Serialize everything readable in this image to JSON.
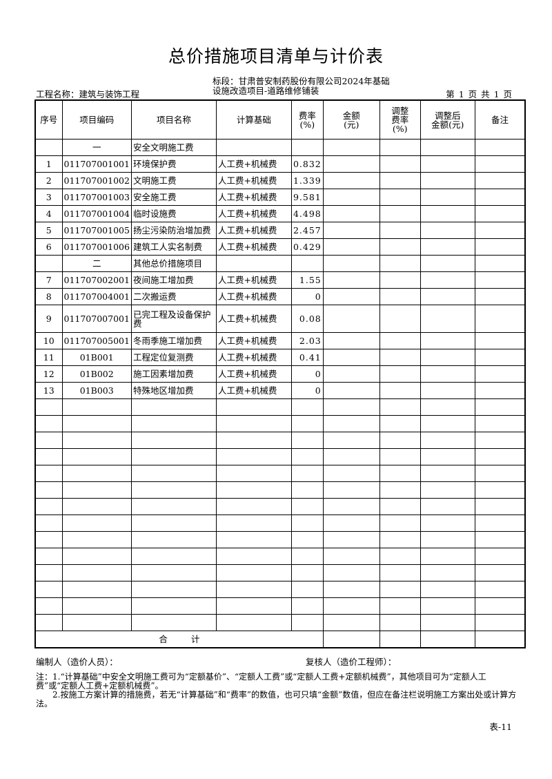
{
  "title": "总价措施项目清单与计价表",
  "project_name": "工程名称：建筑与装饰工程",
  "section": [
    "标段：甘肃普安制药股份有限公司2024年基础",
    "设施改造项目-道路维修铺装"
  ],
  "page_info": "第 1 页  共 1 页",
  "headers": [
    "序号",
    "项目编码",
    "项目名称",
    "计算基础",
    "费率\n(%)",
    "金额\n(元)",
    "调整\n费率\n(%)",
    "调整后\n金额(元)",
    "备注"
  ],
  "rows": [
    {
      "no": "",
      "code": "一",
      "name": "安全文明施工费",
      "basis": "",
      "rate": ""
    },
    {
      "no": "1",
      "code": "011707001001",
      "name": "环境保护费",
      "basis": "人工费+机械费",
      "rate": "0.832"
    },
    {
      "no": "2",
      "code": "011707001002",
      "name": "文明施工费",
      "basis": "人工费+机械费",
      "rate": "1.339"
    },
    {
      "no": "3",
      "code": "011707001003",
      "name": "安全施工费",
      "basis": "人工费+机械费",
      "rate": "9.581"
    },
    {
      "no": "4",
      "code": "011707001004",
      "name": "临时设施费",
      "basis": "人工费+机械费",
      "rate": "4.498"
    },
    {
      "no": "5",
      "code": "011707001005",
      "name": "扬尘污染防治增加费",
      "basis": "人工费+机械费",
      "rate": "2.457"
    },
    {
      "no": "6",
      "code": "011707001006",
      "name": "建筑工人实名制费",
      "basis": "人工费+机械费",
      "rate": "0.429"
    },
    {
      "no": "",
      "code": "二",
      "name": "其他总价措施项目",
      "basis": "",
      "rate": ""
    },
    {
      "no": "7",
      "code": "011707002001",
      "name": "夜间施工增加费",
      "basis": "人工费+机械费",
      "rate": "1.55"
    },
    {
      "no": "8",
      "code": "011707004001",
      "name": "二次搬运费",
      "basis": "人工费+机械费",
      "rate": "0"
    },
    {
      "no": "9",
      "code": "011707007001",
      "name": "已完工程及设备保护费",
      "basis": "人工费+机械费",
      "rate": "0.08"
    },
    {
      "no": "10",
      "code": "011707005001",
      "name": "冬雨季施工增加费",
      "basis": "人工费+机械费",
      "rate": "2.03"
    },
    {
      "no": "11",
      "code": "01B001",
      "name": "工程定位复测费",
      "basis": "人工费+机械费",
      "rate": "0.41"
    },
    {
      "no": "12",
      "code": "01B002",
      "name": "施工因素增加费",
      "basis": "人工费+机械费",
      "rate": "0"
    },
    {
      "no": "13",
      "code": "01B003",
      "name": "特殊地区增加费",
      "basis": "人工费+机械费",
      "rate": "0"
    }
  ],
  "total_label": "合 计",
  "preparer": "编制人（造价人员）：",
  "reviewer": "复核人（造价工程师）：",
  "notes": [
    "注：1.“计算基础”中安全文明施工费可为“定额基价”、“定额人工费”或“定额人工费+定额机械费”，其他项目可为“定额人工费”或“定额人工费+定额机械费”。",
    "2.按施工方案计算的措施费，若无“计算基础”和“费率”的数值，也可只填“金额”数值，但应在备注栏说明施工方案出处或计算方法。"
  ],
  "table_no": "表-11"
}
